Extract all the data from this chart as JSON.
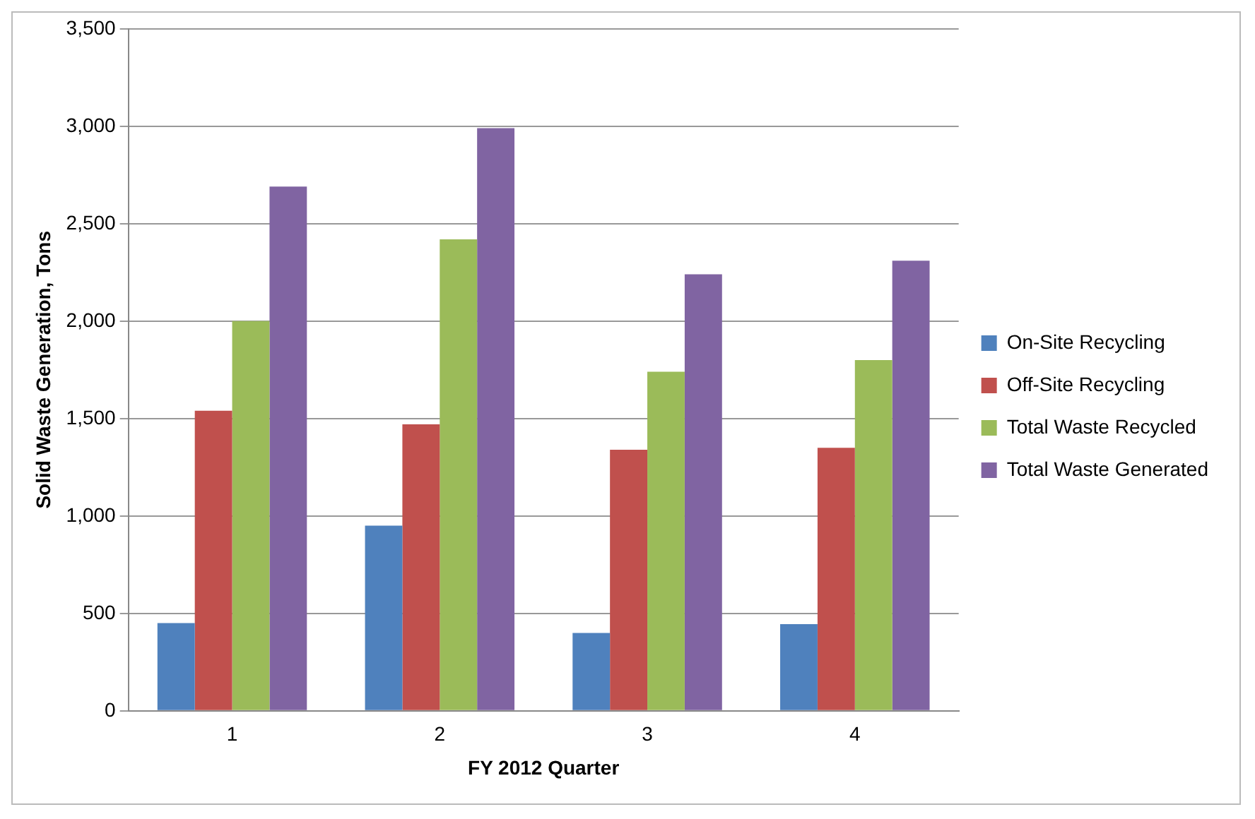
{
  "chart_data": {
    "type": "bar",
    "xlabel": "FY 2012 Quarter",
    "ylabel": "Solid Waste Generation, Tons",
    "categories": [
      "1",
      "2",
      "3",
      "4"
    ],
    "series": [
      {
        "name": "On-Site Recycling",
        "color": "#4f81bd",
        "values": [
          450,
          950,
          400,
          445
        ]
      },
      {
        "name": "Off-Site Recycling",
        "color": "#c0504d",
        "values": [
          1540,
          1470,
          1340,
          1350
        ]
      },
      {
        "name": "Total Waste Recycled",
        "color": "#9bbb59",
        "values": [
          2000,
          2420,
          1740,
          1800
        ]
      },
      {
        "name": "Total Waste Generated",
        "color": "#8064a2",
        "values": [
          2690,
          2990,
          2240,
          2310
        ]
      }
    ],
    "ylim": [
      0,
      3500
    ],
    "yticks": [
      0,
      500,
      {
        "value": 1000,
        "label": "1,000"
      },
      {
        "value": 1500,
        "label": "1,500"
      },
      {
        "value": 2000,
        "label": "2,000"
      },
      {
        "value": 2500,
        "label": "2,500"
      },
      {
        "value": 3000,
        "label": "3,000"
      },
      {
        "value": 3500,
        "label": "3,500"
      }
    ],
    "grid": "y",
    "legend": "right"
  }
}
